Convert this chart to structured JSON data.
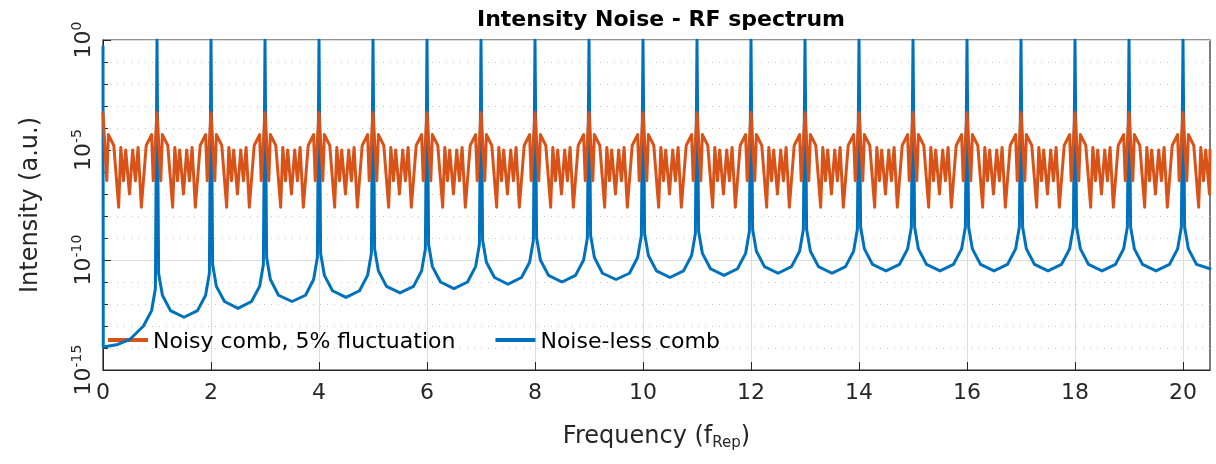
{
  "chart_data": {
    "type": "line",
    "title": "Intensity Noise - RF spectrum",
    "xlabel": "Frequency (f$_{Rep}$)",
    "ylabel": "Intensity (a.u.)",
    "log": "y",
    "grid": true,
    "legend": "bottom",
    "marker": "none",
    "line_style": "solid",
    "xlim": [
      0,
      20.5
    ],
    "xticks": [
      0,
      2,
      4,
      6,
      8,
      10,
      12,
      14,
      16,
      18,
      20
    ],
    "ylim": [
      1e-15,
      1
    ],
    "yticks": [
      {
        "value": 1e-15,
        "label": "10$^{-15}$"
      },
      {
        "value": 1e-14,
        "label": null
      },
      {
        "value": 1e-13,
        "label": null
      },
      {
        "value": 1e-12,
        "label": null
      },
      {
        "value": 1e-11,
        "label": null
      },
      {
        "value": 1e-10,
        "label": "10$^{-10}$"
      },
      {
        "value": 1e-09,
        "label": null
      },
      {
        "value": 1e-08,
        "label": null
      },
      {
        "value": 1e-07,
        "label": null
      },
      {
        "value": 1e-06,
        "label": null
      },
      {
        "value": 1e-05,
        "label": "10$^{-5}$"
      },
      {
        "value": 0.0001,
        "label": null
      },
      {
        "value": 0.001,
        "label": null
      },
      {
        "value": 0.01,
        "label": null
      },
      {
        "value": 0.1,
        "label": null
      },
      {
        "value": 1,
        "label": "10$^{0}$"
      }
    ],
    "series": [
      {
        "name": "Noisy comb, 5% fluctuation",
        "color": "#d95319",
        "x": [
          0,
          0.07,
          0.1,
          0.2,
          0.29,
          0.33,
          0.38,
          0.42,
          0.49,
          0.55,
          0.6,
          0.65,
          0.71,
          0.8,
          0.9,
          0.93,
          1,
          1.07,
          1.1,
          1.2,
          1.29,
          1.33,
          1.38,
          1.42,
          1.49,
          1.55,
          1.6,
          1.65,
          1.71,
          1.8,
          1.9,
          1.93,
          2,
          2.07,
          2.1,
          2.2,
          2.29,
          2.33,
          2.38,
          2.42,
          2.49,
          2.55,
          2.6,
          2.65,
          2.71,
          2.8,
          2.9,
          2.93,
          3,
          3.07,
          3.1,
          3.2,
          3.29,
          3.33,
          3.38,
          3.42,
          3.49,
          3.55,
          3.6,
          3.65,
          3.71,
          3.8,
          3.9,
          3.93,
          4,
          4.07,
          4.1,
          4.2,
          4.29,
          4.33,
          4.38,
          4.42,
          4.49,
          4.55,
          4.6,
          4.65,
          4.71,
          4.8,
          4.9,
          4.93,
          5,
          5.07,
          5.1,
          5.2,
          5.29,
          5.33,
          5.38,
          5.42,
          5.49,
          5.55,
          5.6,
          5.65,
          5.71,
          5.8,
          5.9,
          5.93,
          6,
          6.07,
          6.1,
          6.2,
          6.29,
          6.33,
          6.38,
          6.42,
          6.49,
          6.55,
          6.6,
          6.65,
          6.71,
          6.8,
          6.9,
          6.93,
          7,
          7.07,
          7.1,
          7.2,
          7.29,
          7.33,
          7.38,
          7.42,
          7.49,
          7.55,
          7.6,
          7.65,
          7.71,
          7.8,
          7.9,
          7.93,
          8,
          8.07,
          8.1,
          8.2,
          8.29,
          8.33,
          8.38,
          8.42,
          8.49,
          8.55,
          8.6,
          8.65,
          8.71,
          8.8,
          8.9,
          8.93,
          9,
          9.07,
          9.1,
          9.2,
          9.29,
          9.33,
          9.38,
          9.42,
          9.49,
          9.55,
          9.6,
          9.65,
          9.71,
          9.8,
          9.9,
          9.93,
          10,
          10.07,
          10.1,
          10.2,
          10.29,
          10.33,
          10.38,
          10.42,
          10.49,
          10.55,
          10.6,
          10.65,
          10.71,
          10.8,
          10.9,
          10.93,
          11,
          11.07,
          11.1,
          11.2,
          11.29,
          11.33,
          11.38,
          11.42,
          11.49,
          11.55,
          11.6,
          11.65,
          11.71,
          11.8,
          11.9,
          11.93,
          12,
          12.07,
          12.1,
          12.2,
          12.29,
          12.33,
          12.38,
          12.42,
          12.49,
          12.55,
          12.6,
          12.65,
          12.71,
          12.8,
          12.9,
          12.93,
          13,
          13.07,
          13.1,
          13.2,
          13.29,
          13.33,
          13.38,
          13.42,
          13.49,
          13.55,
          13.6,
          13.65,
          13.71,
          13.8,
          13.9,
          13.93,
          14,
          14.07,
          14.1,
          14.2,
          14.29,
          14.33,
          14.38,
          14.42,
          14.49,
          14.55,
          14.6,
          14.65,
          14.71,
          14.8,
          14.9,
          14.93,
          15,
          15.07,
          15.1,
          15.2,
          15.29,
          15.33,
          15.38,
          15.42,
          15.49,
          15.55,
          15.6,
          15.65,
          15.71,
          15.8,
          15.9,
          15.93,
          16,
          16.07,
          16.1,
          16.2,
          16.29,
          16.33,
          16.38,
          16.42,
          16.49,
          16.55,
          16.6,
          16.65,
          16.71,
          16.8,
          16.9,
          16.93,
          17,
          17.07,
          17.1,
          17.2,
          17.29,
          17.33,
          17.38,
          17.42,
          17.49,
          17.55,
          17.6,
          17.65,
          17.71,
          17.8,
          17.9,
          17.93,
          18,
          18.07,
          18.1,
          18.2,
          18.29,
          18.33,
          18.38,
          18.42,
          18.49,
          18.55,
          18.6,
          18.65,
          18.71,
          18.8,
          18.9,
          18.93,
          19,
          19.07,
          19.1,
          19.2,
          19.29,
          19.33,
          19.38,
          19.42,
          19.49,
          19.55,
          19.6,
          19.65,
          19.71,
          19.8,
          19.9,
          19.93,
          20,
          20.07,
          20.1,
          20.2,
          20.29,
          20.33,
          20.38,
          20.42,
          20.49,
          20.5
        ],
        "values": [
          0.0005,
          4e-07,
          5e-05,
          1.6e-05,
          2.5e-08,
          1.3e-05,
          4e-07,
          1e-05,
          1e-07,
          1e-05,
          4e-07,
          1.3e-05,
          2.5e-08,
          1.6e-05,
          5e-05,
          4e-07,
          0.0005,
          4e-07,
          5e-05,
          1.6e-05,
          2.5e-08,
          1.3e-05,
          4e-07,
          1e-05,
          1e-07,
          1e-05,
          4e-07,
          1.3e-05,
          2.5e-08,
          1.6e-05,
          5e-05,
          4e-07,
          0.0005,
          4e-07,
          5e-05,
          1.6e-05,
          2.5e-08,
          1.3e-05,
          4e-07,
          1e-05,
          1e-07,
          1e-05,
          4e-07,
          1.3e-05,
          2.5e-08,
          1.6e-05,
          5e-05,
          4e-07,
          0.0005,
          4e-07,
          5e-05,
          1.6e-05,
          2.5e-08,
          1.3e-05,
          4e-07,
          1e-05,
          1e-07,
          1e-05,
          4e-07,
          1.3e-05,
          2.5e-08,
          1.6e-05,
          5e-05,
          4e-07,
          0.0005,
          4e-07,
          5e-05,
          1.6e-05,
          2.5e-08,
          1.3e-05,
          4e-07,
          1e-05,
          1e-07,
          1e-05,
          4e-07,
          1.3e-05,
          2.5e-08,
          1.6e-05,
          5e-05,
          4e-07,
          0.0005,
          4e-07,
          5e-05,
          1.6e-05,
          2.5e-08,
          1.3e-05,
          4e-07,
          1e-05,
          1e-07,
          1e-05,
          4e-07,
          1.3e-05,
          2.5e-08,
          1.6e-05,
          5e-05,
          4e-07,
          0.0005,
          4e-07,
          5e-05,
          1.6e-05,
          2.5e-08,
          1.3e-05,
          4e-07,
          1e-05,
          1e-07,
          1e-05,
          4e-07,
          1.3e-05,
          2.5e-08,
          1.6e-05,
          5e-05,
          4e-07,
          0.0005,
          4e-07,
          5e-05,
          1.6e-05,
          2.5e-08,
          1.3e-05,
          4e-07,
          1e-05,
          1e-07,
          1e-05,
          4e-07,
          1.3e-05,
          2.5e-08,
          1.6e-05,
          5e-05,
          4e-07,
          0.0005,
          4e-07,
          5e-05,
          1.6e-05,
          2.5e-08,
          1.3e-05,
          4e-07,
          1e-05,
          1e-07,
          1e-05,
          4e-07,
          1.3e-05,
          2.5e-08,
          1.6e-05,
          5e-05,
          4e-07,
          0.0005,
          4e-07,
          5e-05,
          1.6e-05,
          2.5e-08,
          1.3e-05,
          4e-07,
          1e-05,
          1e-07,
          1e-05,
          4e-07,
          1.3e-05,
          2.5e-08,
          1.6e-05,
          5e-05,
          4e-07,
          0.0005,
          4e-07,
          5e-05,
          1.6e-05,
          2.5e-08,
          1.3e-05,
          4e-07,
          1e-05,
          1e-07,
          1e-05,
          4e-07,
          1.3e-05,
          2.5e-08,
          1.6e-05,
          5e-05,
          4e-07,
          0.0005,
          4e-07,
          5e-05,
          1.6e-05,
          2.5e-08,
          1.3e-05,
          4e-07,
          1e-05,
          1e-07,
          1e-05,
          4e-07,
          1.3e-05,
          2.5e-08,
          1.6e-05,
          5e-05,
          4e-07,
          0.0005,
          4e-07,
          5e-05,
          1.6e-05,
          2.5e-08,
          1.3e-05,
          4e-07,
          1e-05,
          1e-07,
          1e-05,
          4e-07,
          1.3e-05,
          2.5e-08,
          1.6e-05,
          5e-05,
          4e-07,
          0.0005,
          4e-07,
          5e-05,
          1.6e-05,
          2.5e-08,
          1.3e-05,
          4e-07,
          1e-05,
          1e-07,
          1e-05,
          4e-07,
          1.3e-05,
          2.5e-08,
          1.6e-05,
          5e-05,
          4e-07,
          0.0005,
          4e-07,
          5e-05,
          1.6e-05,
          2.5e-08,
          1.3e-05,
          4e-07,
          1e-05,
          1e-07,
          1e-05,
          4e-07,
          1.3e-05,
          2.5e-08,
          1.6e-05,
          5e-05,
          4e-07,
          0.0005,
          4e-07,
          5e-05,
          1.6e-05,
          2.5e-08,
          1.3e-05,
          4e-07,
          1e-05,
          1e-07,
          1e-05,
          4e-07,
          1.3e-05,
          2.5e-08,
          1.6e-05,
          5e-05,
          4e-07,
          0.0005,
          4e-07,
          5e-05,
          1.6e-05,
          2.5e-08,
          1.3e-05,
          4e-07,
          1e-05,
          1e-07,
          1e-05,
          4e-07,
          1.3e-05,
          2.5e-08,
          1.6e-05,
          5e-05,
          4e-07,
          0.0005,
          4e-07,
          5e-05,
          1.6e-05,
          2.5e-08,
          1.3e-05,
          4e-07,
          1e-05,
          1e-07,
          1e-05,
          4e-07,
          1.3e-05,
          2.5e-08,
          1.6e-05,
          5e-05,
          4e-07,
          0.0005,
          4e-07,
          5e-05,
          1.6e-05,
          2.5e-08,
          1.3e-05,
          4e-07,
          1e-05,
          1e-07,
          1e-05,
          4e-07,
          1.3e-05,
          2.5e-08,
          1.6e-05,
          5e-05,
          4e-07,
          0.0005,
          4e-07,
          5e-05,
          1.6e-05,
          2.5e-08,
          1.3e-05,
          4e-07,
          1e-05,
          1e-07,
          1e-05,
          4e-07,
          1.3e-05,
          2.5e-08,
          1.6e-05,
          5e-05,
          4e-07,
          0.0005,
          4e-07,
          5e-05,
          1.6e-05,
          2.5e-08,
          1.3e-05,
          4e-07,
          1e-05,
          1e-07,
          1e-05
        ]
      },
      {
        "name": "Noise-less comb",
        "color": "#0072bd",
        "x": [
          0,
          0.005,
          0.25,
          0.5,
          0.75,
          0.9,
          0.97,
          1,
          1.03,
          1.1,
          1.25,
          1.5,
          1.75,
          1.9,
          1.97,
          2,
          2.03,
          2.1,
          2.25,
          2.5,
          2.75,
          2.9,
          2.97,
          3,
          3.03,
          3.1,
          3.25,
          3.5,
          3.75,
          3.9,
          3.97,
          4,
          4.03,
          4.1,
          4.25,
          4.5,
          4.75,
          4.9,
          4.97,
          5,
          5.03,
          5.1,
          5.25,
          5.5,
          5.75,
          5.9,
          5.97,
          6,
          6.03,
          6.1,
          6.25,
          6.5,
          6.75,
          6.9,
          6.97,
          7,
          7.03,
          7.1,
          7.25,
          7.5,
          7.75,
          7.9,
          7.97,
          8,
          8.03,
          8.1,
          8.25,
          8.5,
          8.75,
          8.9,
          8.97,
          9,
          9.03,
          9.1,
          9.25,
          9.5,
          9.75,
          9.9,
          9.97,
          10,
          10.03,
          10.1,
          10.25,
          10.5,
          10.75,
          10.9,
          10.97,
          11,
          11.03,
          11.1,
          11.25,
          11.5,
          11.75,
          11.9,
          11.97,
          12,
          12.03,
          12.1,
          12.25,
          12.5,
          12.75,
          12.9,
          12.97,
          13,
          13.03,
          13.1,
          13.25,
          13.5,
          13.75,
          13.9,
          13.97,
          14,
          14.03,
          14.1,
          14.25,
          14.5,
          14.75,
          14.9,
          14.97,
          15,
          15.03,
          15.1,
          15.25,
          15.5,
          15.75,
          15.9,
          15.97,
          16,
          16.03,
          16.1,
          16.25,
          16.5,
          16.75,
          16.9,
          16.97,
          17,
          17.03,
          17.1,
          17.25,
          17.5,
          17.75,
          17.9,
          17.97,
          18,
          18.03,
          18.1,
          18.25,
          18.5,
          18.75,
          18.9,
          18.97,
          19,
          19.03,
          19.1,
          19.25,
          19.5,
          19.75,
          19.9,
          19.97,
          20,
          20.03,
          20.1,
          20.25,
          20.5
        ],
        "values": [
          0.5,
          1.1e-14,
          1.4e-14,
          2.5e-14,
          1e-13,
          5e-13,
          5e-12,
          1,
          2.5e-11,
          2.5e-12,
          5e-13,
          2.5e-13,
          5e-13,
          2.5e-12,
          2.5e-11,
          1,
          6.3e-11,
          6.3e-12,
          1.3e-12,
          6.3e-13,
          1.3e-12,
          6.3e-12,
          6.3e-11,
          1,
          1.3e-10,
          1.3e-11,
          2.5e-12,
          1.3e-12,
          2.5e-12,
          1.3e-11,
          1.3e-10,
          1,
          2e-10,
          2e-11,
          4e-12,
          2e-12,
          4e-12,
          2e-11,
          2e-10,
          1,
          3.2e-10,
          3.2e-11,
          6.3e-12,
          3.2e-12,
          6.3e-12,
          3.2e-11,
          3.2e-10,
          1,
          5e-10,
          5e-11,
          1e-11,
          5e-12,
          1e-11,
          5e-11,
          5e-10,
          1,
          7.9e-10,
          7.9e-11,
          1.6e-11,
          7.9e-12,
          1.6e-11,
          7.9e-11,
          7.9e-10,
          1,
          1e-09,
          1e-10,
          2e-11,
          1e-11,
          2e-11,
          1e-10,
          1e-09,
          1,
          1.3e-09,
          1.3e-10,
          2.5e-11,
          1.3e-11,
          2.5e-11,
          1.3e-10,
          1.3e-09,
          1,
          1.6e-09,
          1.6e-10,
          3.2e-11,
          1.6e-11,
          3.2e-11,
          1.6e-10,
          1.6e-09,
          1,
          2e-09,
          2e-10,
          4e-11,
          2e-11,
          4e-11,
          2e-10,
          2e-09,
          1,
          2.5e-09,
          2.5e-10,
          5e-11,
          2.5e-11,
          5e-11,
          2.5e-10,
          2.5e-09,
          1,
          2.5e-09,
          2.5e-10,
          5e-11,
          2.5e-11,
          5e-11,
          2.5e-10,
          2.5e-09,
          1,
          3.2e-09,
          3.2e-10,
          6.3e-11,
          3.2e-11,
          6.3e-11,
          3.2e-10,
          3.2e-09,
          1,
          3.2e-09,
          3.2e-10,
          6.3e-11,
          3.2e-11,
          6.3e-11,
          3.2e-10,
          3.2e-09,
          1,
          3.2e-09,
          3.2e-10,
          6.3e-11,
          3.2e-11,
          6.3e-11,
          3.2e-10,
          3.2e-09,
          1,
          3.2e-09,
          3.2e-10,
          6.3e-11,
          3.2e-11,
          6.3e-11,
          3.2e-10,
          3.2e-09,
          1,
          3.2e-09,
          3.2e-10,
          6.3e-11,
          3.2e-11,
          6.3e-11,
          3.2e-10,
          3.2e-09,
          1,
          3.2e-09,
          3.2e-10,
          6.3e-11,
          3.2e-11,
          6.3e-11,
          3.2e-10,
          3.2e-09,
          1,
          3.2e-09,
          3.2e-10,
          6.3e-11,
          4e-11
        ]
      }
    ]
  }
}
